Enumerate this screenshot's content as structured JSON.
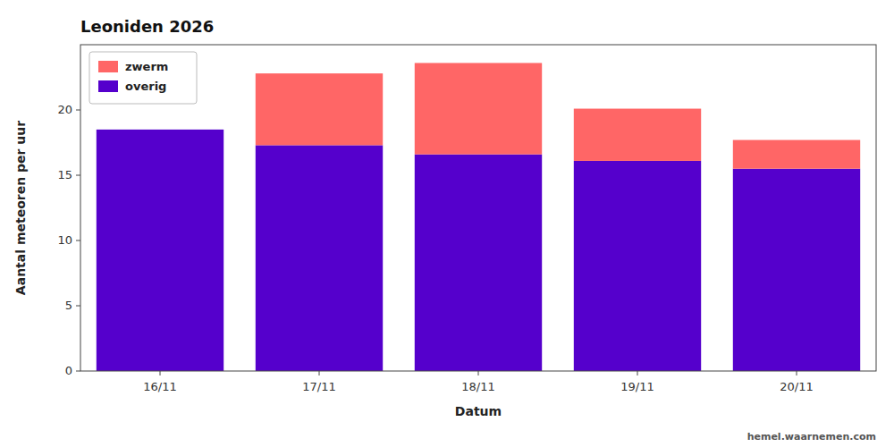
{
  "chart_data": {
    "type": "bar",
    "stacked": true,
    "title": "Leoniden 2026",
    "x_label": "Datum",
    "y_label": "Aantal meteoren per uur",
    "categories": [
      "16/11",
      "17/11",
      "18/11",
      "19/11",
      "20/11"
    ],
    "series": [
      {
        "name": "overig",
        "color": "#5500cc",
        "values": [
          18.5,
          17.3,
          16.6,
          16.1,
          15.5
        ]
      },
      {
        "name": "zwerm",
        "color": "#ff6666",
        "values": [
          0.0,
          5.5,
          7.0,
          4.0,
          2.2
        ]
      }
    ],
    "ylim": [
      0,
      25
    ],
    "yticks": [
      0,
      5,
      10,
      15,
      20
    ],
    "grid": false,
    "legend": "upper left",
    "annotations": [
      "hemel.waarnemen.com"
    ]
  }
}
